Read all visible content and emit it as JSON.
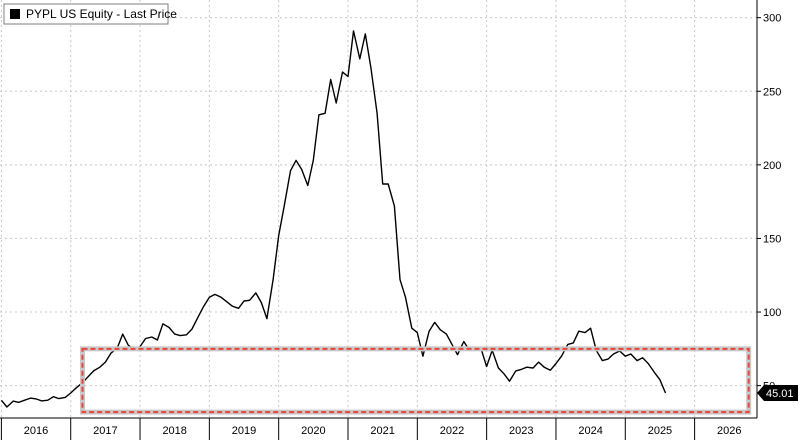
{
  "chart_data": {
    "type": "line",
    "legend": {
      "label": "PYPL US Equity - Last Price",
      "position": "top-left"
    },
    "x_ticks": [
      "2016",
      "2017",
      "2018",
      "2019",
      "2020",
      "2021",
      "2022",
      "2023",
      "2024",
      "2025",
      "2026"
    ],
    "y_ticks": [
      "300",
      "250",
      "200",
      "150",
      "100",
      "50"
    ],
    "ylim": [
      28,
      312
    ],
    "xlim": [
      2015.48,
      2026.4
    ],
    "y_axis_side": "right",
    "grid": "dashed",
    "last_price_label": "45.01",
    "series": [
      {
        "color": "#000000",
        "points": [
          [
            2015.5,
            40.0
          ],
          [
            2015.58,
            35.5
          ],
          [
            2015.67,
            39.5
          ],
          [
            2015.75,
            38.6
          ],
          [
            2015.83,
            40.0
          ],
          [
            2015.92,
            41.5
          ],
          [
            2016.0,
            41.0
          ],
          [
            2016.08,
            39.6
          ],
          [
            2016.17,
            40.1
          ],
          [
            2016.25,
            42.5
          ],
          [
            2016.33,
            41.2
          ],
          [
            2016.42,
            42.0
          ],
          [
            2016.5,
            45.0
          ],
          [
            2016.58,
            48.5
          ],
          [
            2016.67,
            52.0
          ],
          [
            2016.75,
            56.0
          ],
          [
            2016.83,
            60.0
          ],
          [
            2016.92,
            62.5
          ],
          [
            2017.0,
            66.0
          ],
          [
            2017.08,
            72.0
          ],
          [
            2017.17,
            75.5
          ],
          [
            2017.25,
            85.0
          ],
          [
            2017.33,
            77.5
          ],
          [
            2017.42,
            74.0
          ],
          [
            2017.5,
            76.5
          ],
          [
            2017.58,
            82.0
          ],
          [
            2017.67,
            83.0
          ],
          [
            2017.75,
            81.0
          ],
          [
            2017.83,
            92.0
          ],
          [
            2017.92,
            89.5
          ],
          [
            2018.0,
            85.0
          ],
          [
            2018.08,
            84.0
          ],
          [
            2018.17,
            84.5
          ],
          [
            2018.25,
            88.5
          ],
          [
            2018.33,
            96.0
          ],
          [
            2018.42,
            104.0
          ],
          [
            2018.5,
            110.0
          ],
          [
            2018.58,
            112.0
          ],
          [
            2018.67,
            110.0
          ],
          [
            2018.75,
            107.0
          ],
          [
            2018.83,
            104.0
          ],
          [
            2018.92,
            102.5
          ],
          [
            2019.0,
            107.5
          ],
          [
            2019.08,
            108.0
          ],
          [
            2019.17,
            113.0
          ],
          [
            2019.25,
            106.5
          ],
          [
            2019.33,
            95.5
          ],
          [
            2019.42,
            122.0
          ],
          [
            2019.5,
            152.0
          ],
          [
            2019.58,
            172.0
          ],
          [
            2019.67,
            196.0
          ],
          [
            2019.75,
            203.0
          ],
          [
            2019.83,
            197.0
          ],
          [
            2019.92,
            186.0
          ],
          [
            2020.0,
            203.0
          ],
          [
            2020.08,
            234.0
          ],
          [
            2020.17,
            235.0
          ],
          [
            2020.25,
            258.0
          ],
          [
            2020.33,
            242.0
          ],
          [
            2020.42,
            263.0
          ],
          [
            2020.5,
            260.0
          ],
          [
            2020.58,
            291.0
          ],
          [
            2020.67,
            272.0
          ],
          [
            2020.75,
            289.0
          ],
          [
            2020.83,
            266.0
          ],
          [
            2020.92,
            235.0
          ],
          [
            2021.0,
            187.0
          ],
          [
            2021.08,
            187.0
          ],
          [
            2021.17,
            172.0
          ],
          [
            2021.25,
            122.0
          ],
          [
            2021.33,
            110.0
          ],
          [
            2021.42,
            89.0
          ],
          [
            2021.5,
            86.0
          ],
          [
            2021.58,
            70.0
          ],
          [
            2021.67,
            87.0
          ],
          [
            2021.75,
            93.0
          ],
          [
            2021.83,
            88.0
          ],
          [
            2021.92,
            85.0
          ],
          [
            2022.0,
            78.0
          ],
          [
            2022.08,
            71.0
          ],
          [
            2022.17,
            80.0
          ],
          [
            2022.25,
            74.0
          ],
          [
            2022.33,
            76.0
          ],
          [
            2022.42,
            75.0
          ],
          [
            2022.5,
            63.0
          ],
          [
            2022.58,
            74.0
          ],
          [
            2022.67,
            62.0
          ],
          [
            2022.75,
            58.0
          ],
          [
            2022.83,
            53.0
          ],
          [
            2022.92,
            60.0
          ],
          [
            2023.0,
            61.0
          ],
          [
            2023.08,
            62.5
          ],
          [
            2023.17,
            62.0
          ],
          [
            2023.25,
            66.0
          ],
          [
            2023.33,
            62.5
          ],
          [
            2023.42,
            60.5
          ],
          [
            2023.5,
            65.0
          ],
          [
            2023.58,
            70.0
          ],
          [
            2023.67,
            78.0
          ],
          [
            2023.75,
            79.0
          ],
          [
            2023.83,
            87.0
          ],
          [
            2023.92,
            86.0
          ],
          [
            2024.0,
            89.0
          ],
          [
            2024.08,
            74.0
          ],
          [
            2024.17,
            67.0
          ],
          [
            2024.25,
            68.0
          ],
          [
            2024.33,
            71.5
          ],
          [
            2024.42,
            73.5
          ],
          [
            2024.5,
            70.0
          ],
          [
            2024.58,
            71.5
          ],
          [
            2024.67,
            67.0
          ],
          [
            2024.75,
            69.0
          ],
          [
            2024.83,
            65.0
          ],
          [
            2024.92,
            59.0
          ],
          [
            2025.0,
            54.0
          ],
          [
            2025.08,
            45.01
          ]
        ]
      }
    ],
    "highlight_box": {
      "stroke": "#e8433a",
      "x_range": [
        2016.67,
        2026.28
      ],
      "y_range": [
        32,
        75
      ]
    }
  }
}
